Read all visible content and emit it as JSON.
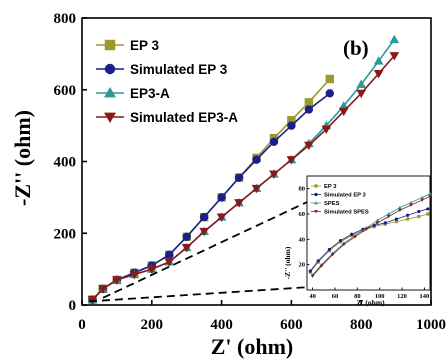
{
  "chart_data": [
    {
      "type": "line",
      "title": "",
      "panel_label": "(b)",
      "xlabel": "Z' (ohm)",
      "ylabel": "-Z'' (ohm)",
      "xlim": [
        0,
        1000
      ],
      "ylim": [
        0,
        800
      ],
      "xticks": [
        0,
        200,
        400,
        600,
        800,
        1000
      ],
      "yticks": [
        0,
        200,
        400,
        600,
        800
      ],
      "legend_position": "top-left",
      "series": [
        {
          "name": "EP 3",
          "color": "#9a9a2a",
          "marker": "square",
          "x": [
            30,
            60,
            100,
            150,
            200,
            250,
            300,
            350,
            400,
            450,
            500,
            550,
            600,
            650,
            710
          ],
          "y": [
            15,
            45,
            70,
            90,
            110,
            140,
            190,
            245,
            300,
            355,
            410,
            465,
            515,
            565,
            630
          ]
        },
        {
          "name": "Simulated EP 3",
          "color": "#1a1f8a",
          "marker": "circle",
          "x": [
            30,
            60,
            100,
            150,
            200,
            250,
            300,
            350,
            400,
            450,
            500,
            550,
            600,
            650,
            710
          ],
          "y": [
            15,
            45,
            70,
            90,
            110,
            140,
            190,
            245,
            300,
            355,
            405,
            455,
            500,
            545,
            590
          ]
        },
        {
          "name": "EP3-A",
          "color": "#2a9a9a",
          "marker": "triangle-up",
          "x": [
            30,
            60,
            100,
            150,
            200,
            250,
            300,
            350,
            400,
            450,
            500,
            550,
            600,
            650,
            700,
            750,
            800,
            850,
            895
          ],
          "y": [
            15,
            45,
            70,
            85,
            100,
            120,
            160,
            205,
            245,
            285,
            325,
            365,
            405,
            450,
            500,
            555,
            615,
            680,
            740
          ]
        },
        {
          "name": "Simulated EP3-A",
          "color": "#8a1a1a",
          "marker": "triangle-down",
          "x": [
            30,
            60,
            100,
            150,
            200,
            250,
            300,
            350,
            400,
            450,
            500,
            550,
            600,
            650,
            700,
            750,
            800,
            850,
            895
          ],
          "y": [
            15,
            45,
            70,
            85,
            100,
            120,
            160,
            205,
            245,
            285,
            325,
            365,
            405,
            445,
            490,
            540,
            590,
            645,
            695
          ]
        }
      ]
    },
    {
      "type": "line",
      "title": "",
      "xlabel": "Z' (ohm)",
      "ylabel": "-Z'' (ohm)",
      "xlim": [
        35,
        145
      ],
      "ylim": [
        0,
        90
      ],
      "xticks": [
        40,
        60,
        80,
        100,
        120,
        140
      ],
      "yticks": [
        20,
        40,
        60,
        80
      ],
      "legend_position": "top-left",
      "series": [
        {
          "name": "EP 3",
          "color": "#9a9a2a",
          "marker": "square",
          "x": [
            38,
            45,
            55,
            65,
            75,
            85,
            95,
            105,
            115,
            125,
            135,
            143
          ],
          "y": [
            14,
            22,
            31,
            38,
            43,
            47,
            50,
            52,
            54,
            56,
            58,
            60
          ]
        },
        {
          "name": "Simulated EP 3",
          "color": "#1a1f8a",
          "marker": "circle",
          "x": [
            38,
            45,
            55,
            65,
            75,
            85,
            95,
            105,
            115,
            125,
            135,
            143
          ],
          "y": [
            15,
            23,
            32,
            39,
            44,
            48,
            51,
            53,
            56,
            59,
            62,
            64
          ]
        },
        {
          "name": "SPES",
          "color": "#2a9a9a",
          "marker": "triangle-up",
          "x": [
            40,
            48,
            58,
            68,
            78,
            88,
            98,
            108,
            118,
            128,
            138,
            145
          ],
          "y": [
            12,
            20,
            29,
            37,
            43,
            49,
            55,
            60,
            65,
            69,
            73,
            76
          ]
        },
        {
          "name": "Simulated SPES",
          "color": "#8a1a1a",
          "marker": "triangle-down",
          "x": [
            40,
            48,
            58,
            68,
            78,
            88,
            98,
            108,
            118,
            128,
            138,
            145
          ],
          "y": [
            11,
            19,
            28,
            36,
            42,
            48,
            53,
            58,
            63,
            67,
            71,
            74
          ]
        }
      ]
    }
  ]
}
